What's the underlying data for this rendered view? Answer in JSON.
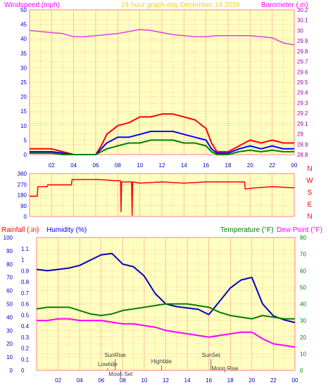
{
  "page": {
    "background": "#ffffff"
  },
  "colors": {
    "plot_bg": "#ffffc0",
    "grid": "#ff8080",
    "plot_border": "#ff8080",
    "axis_left": "#0000c0",
    "axis_right": "#008000",
    "axis_baro": "#a000a0",
    "title": "#ffd000",
    "label_wind": "#ff00ff",
    "label_baro": "#ff00ff",
    "label_rain": "#ff0000",
    "label_hum": "#0000ff",
    "label_temp": "#008000",
    "label_dew": "#ff00ff",
    "dir_labels": "#ff0000"
  },
  "chart_data": [
    {
      "type": "line",
      "title": "24 hour graph day   December 14 2016",
      "ylabel_left": "Windspeed (mph)",
      "ylabel_right": "Barometer (.in)",
      "x_ticks": [
        "02",
        "04",
        "06",
        "08",
        "10",
        "12",
        "14",
        "16",
        "18",
        "20",
        "22",
        "00"
      ],
      "x_range": [
        0,
        24
      ],
      "ylim_left": [
        0,
        50
      ],
      "ylim_right": [
        28.8,
        30.2
      ],
      "y_ticks_left": [
        "0",
        "5",
        "10",
        "15",
        "20",
        "25",
        "30",
        "35",
        "40",
        "45",
        "50"
      ],
      "y_ticks_right": [
        "28.8",
        "28.9",
        "29",
        "29.1",
        "29.2",
        "29.3",
        "29.4",
        "29.5",
        "29.6",
        "29.7",
        "29.8",
        "29.9",
        "30",
        "30.1",
        "30.2"
      ],
      "grid": true,
      "series": [
        {
          "name": "Barometer",
          "axis": "right",
          "color": "#e040e0",
          "x": [
            0,
            1,
            2,
            3,
            4,
            5,
            6,
            7,
            8,
            9,
            10,
            11,
            12,
            13,
            14,
            15,
            16,
            17,
            18,
            19,
            20,
            21,
            22,
            23,
            24
          ],
          "y": [
            30.0,
            29.99,
            29.98,
            29.97,
            29.94,
            29.94,
            29.95,
            29.96,
            29.97,
            29.99,
            30.01,
            30.0,
            29.98,
            29.96,
            29.95,
            29.94,
            29.94,
            29.95,
            29.95,
            29.95,
            29.95,
            29.94,
            29.93,
            29.88,
            29.86
          ]
        },
        {
          "name": "Gust",
          "axis": "left",
          "color": "#ff0000",
          "x": [
            0,
            1,
            2,
            3,
            4,
            5,
            6,
            6.5,
            7,
            8,
            9,
            10,
            11,
            12,
            13,
            14,
            15,
            16,
            16.5,
            17,
            18,
            19,
            20,
            21,
            22,
            23,
            24
          ],
          "y": [
            2,
            2,
            2,
            1,
            0,
            0,
            0,
            3,
            7,
            10,
            11,
            13,
            13,
            14,
            14,
            13,
            12,
            9,
            4,
            1,
            1,
            3,
            5,
            4,
            5,
            4,
            4
          ]
        },
        {
          "name": "Average",
          "axis": "left",
          "color": "#0000ff",
          "x": [
            0,
            1,
            2,
            3,
            4,
            5,
            6,
            6.5,
            7,
            8,
            9,
            10,
            11,
            12,
            13,
            14,
            15,
            16,
            16.5,
            17,
            18,
            19,
            20,
            21,
            22,
            23,
            24
          ],
          "y": [
            1,
            1,
            1,
            0.5,
            0,
            0,
            0,
            2,
            4,
            6,
            6,
            7,
            8,
            8,
            8,
            7,
            6,
            5,
            2,
            0.5,
            0.5,
            2,
            3,
            2,
            3,
            2,
            2
          ]
        },
        {
          "name": "Windspeed",
          "axis": "left",
          "color": "#008000",
          "x": [
            0,
            1,
            2,
            3,
            4,
            5,
            6,
            6.5,
            7,
            8,
            9,
            10,
            11,
            12,
            13,
            14,
            15,
            16,
            16.5,
            17,
            18,
            19,
            20,
            21,
            22,
            23,
            24
          ],
          "y": [
            0.5,
            0.5,
            0.5,
            0,
            0,
            0,
            0,
            1,
            2,
            3,
            4,
            4,
            5,
            5,
            5,
            4,
            4,
            3,
            1,
            0,
            0,
            1,
            1.5,
            1,
            1.5,
            1,
            1
          ]
        }
      ]
    },
    {
      "type": "line",
      "title": "",
      "x_ticks": [
        "02",
        "04",
        "06",
        "08",
        "10",
        "12",
        "14",
        "16",
        "18",
        "20",
        "22",
        "00"
      ],
      "x_range": [
        0,
        24
      ],
      "ylim_left": [
        0,
        360
      ],
      "y_ticks_left": [
        "0",
        "90",
        "180",
        "270",
        "360"
      ],
      "dir_labels": [
        "N",
        "W",
        "S",
        "E",
        "N"
      ],
      "grid": true,
      "series": [
        {
          "name": "Wind direction",
          "axis": "left",
          "color": "#ff0000",
          "x": [
            0,
            0.7,
            0.75,
            1.6,
            1.65,
            3.8,
            3.85,
            6.3,
            8,
            8.25,
            8.3,
            8.35,
            9,
            9.25,
            9.3,
            9.35,
            10,
            12,
            14,
            16,
            18,
            19.5,
            19.55,
            20.5,
            22,
            24
          ],
          "y": [
            170,
            170,
            250,
            250,
            265,
            265,
            310,
            310,
            300,
            300,
            40,
            290,
            290,
            290,
            10,
            290,
            280,
            290,
            280,
            290,
            290,
            290,
            230,
            240,
            250,
            240
          ]
        }
      ]
    },
    {
      "type": "line",
      "title": "",
      "ylabel_left_1": "Rainfall (.in)",
      "ylabel_left_2": "Humidity (%)",
      "ylabel_right_1": "Temperature (°F)",
      "ylabel_right_2": "Dew Point (°F)",
      "x_ticks": [
        "02",
        "04",
        "06",
        "08",
        "10",
        "12",
        "14",
        "16",
        "18",
        "20",
        "22",
        "00"
      ],
      "x_range": [
        0,
        24
      ],
      "ylim_rain": [
        0,
        1.2
      ],
      "ylim_hum": [
        0,
        100
      ],
      "ylim_temp": [
        0,
        80
      ],
      "y_ticks_rain": [
        "0",
        "0.1",
        "0.2",
        "0.3",
        "0.4",
        "0.5",
        "0.6",
        "0.7",
        "0.8",
        "0.9",
        "1",
        "1.1"
      ],
      "y_ticks_hum": [
        "0",
        "10",
        "20",
        "30",
        "40",
        "50",
        "60",
        "70",
        "80",
        "90",
        "100"
      ],
      "y_ticks_temp": [
        "0",
        "10",
        "20",
        "30",
        "40",
        "50",
        "60",
        "70",
        "80"
      ],
      "grid": true,
      "series": [
        {
          "name": "Humidity",
          "axis": "hum",
          "color": "#0000c0",
          "x": [
            0,
            1,
            2,
            3,
            4,
            5,
            6,
            7,
            7.5,
            8,
            9,
            10,
            11,
            12,
            13,
            14,
            15,
            16,
            17,
            18,
            19,
            20,
            21,
            22,
            23,
            24
          ],
          "y": [
            76,
            75,
            76,
            77,
            79,
            83,
            87,
            88,
            84,
            80,
            78,
            71,
            58,
            50,
            48,
            47,
            46,
            42,
            52,
            62,
            68,
            70,
            50,
            41,
            38,
            36
          ]
        },
        {
          "name": "Temperature",
          "axis": "temp",
          "color": "#008000",
          "x": [
            0,
            1,
            2,
            3,
            4,
            5,
            6,
            7,
            8,
            9,
            10,
            11,
            12,
            13,
            14,
            15,
            16,
            17,
            18,
            19,
            20,
            21,
            22,
            23,
            24
          ],
          "y": [
            37,
            38,
            38,
            38,
            36,
            34,
            33,
            34,
            36,
            37,
            38,
            39,
            40,
            40,
            40,
            39,
            38,
            35,
            33,
            32,
            31,
            33,
            32,
            31,
            31
          ]
        },
        {
          "name": "Dew Point",
          "axis": "temp",
          "color": "#ff00ff",
          "x": [
            0,
            1,
            2,
            3,
            4,
            5,
            6,
            7,
            8,
            9,
            10,
            11,
            12,
            13,
            14,
            15,
            16,
            17,
            18,
            19,
            20,
            21,
            22,
            23,
            24
          ],
          "y": [
            30,
            30,
            31,
            31,
            30,
            30,
            30,
            29,
            28,
            28,
            27,
            26,
            24,
            23,
            22,
            21,
            20,
            21,
            22,
            23,
            23,
            19,
            16,
            15,
            14
          ]
        }
      ],
      "events": [
        {
          "label": "SunRise",
          "x": 7.3
        },
        {
          "label": "Moon Set",
          "x": 7.8
        },
        {
          "label": "Lowtide",
          "x": 6.6
        },
        {
          "label": "Hightide",
          "x": 11.6
        },
        {
          "label": "SunSet",
          "x": 16.2
        },
        {
          "label": "Moon Rise",
          "x": 17.5
        }
      ]
    }
  ]
}
